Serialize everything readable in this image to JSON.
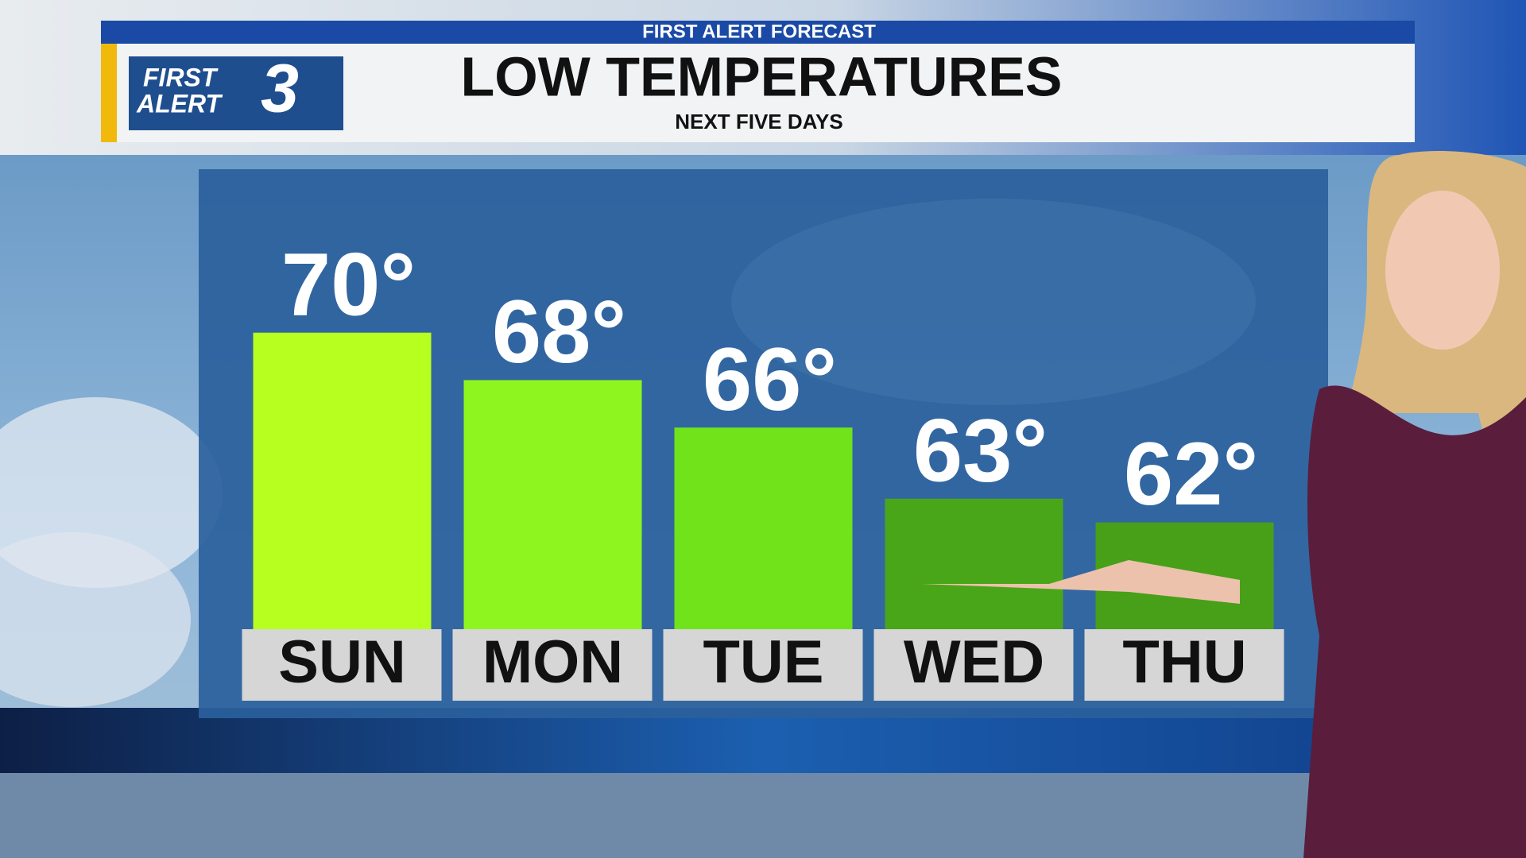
{
  "chart_data": {
    "type": "bar",
    "header": "FIRST ALERT FORECAST",
    "logo_lines": [
      "FIRST",
      "ALERT"
    ],
    "logo_number": "3",
    "title": "LOW TEMPERATURES",
    "subtitle": "NEXT FIVE DAYS",
    "categories": [
      "SUN",
      "MON",
      "TUE",
      "WED",
      "THU"
    ],
    "values": [
      70,
      68,
      66,
      63,
      62
    ],
    "value_labels": [
      "70°",
      "68°",
      "66°",
      "63°",
      "62°"
    ],
    "colors": [
      "#b6ff1f",
      "#8ef51e",
      "#70e31b",
      "#4aa619",
      "#47a018"
    ],
    "ylim": [
      57.5,
      72
    ]
  }
}
